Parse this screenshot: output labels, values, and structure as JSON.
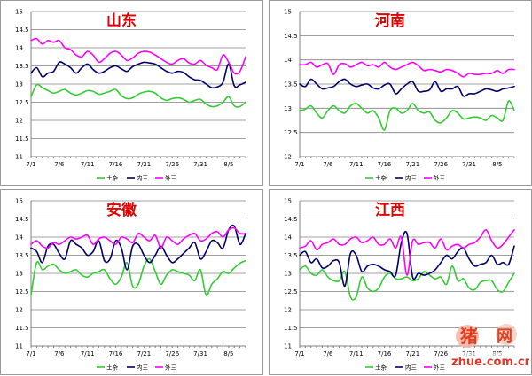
{
  "chart_data": [
    {
      "type": "line",
      "title": "山东",
      "ylim": [
        11,
        15
      ],
      "yticks": [
        "11",
        "11.5",
        "12",
        "12.5",
        "13",
        "13.5",
        "14",
        "14.5",
        "15"
      ],
      "x": [
        "7/1",
        "7/2",
        "7/3",
        "7/4",
        "7/5",
        "7/6",
        "7/7",
        "7/8",
        "7/9",
        "7/10",
        "7/11",
        "7/12",
        "7/13",
        "7/14",
        "7/15",
        "7/16",
        "7/17",
        "7/18",
        "7/19",
        "7/20",
        "7/21",
        "7/22",
        "7/23",
        "7/24",
        "7/25",
        "7/26",
        "7/27",
        "7/28",
        "7/29",
        "7/30",
        "7/31",
        "8/1",
        "8/2",
        "8/3",
        "8/4",
        "8/5",
        "8/6",
        "8/7",
        "8/8"
      ],
      "xtick_labels": [
        "7/1",
        "7/6",
        "7/11",
        "7/16",
        "7/21",
        "7/26",
        "7/31",
        "8/5"
      ],
      "legend_position": "bottom",
      "series": [
        {
          "name": "土杂",
          "color": "#33cc33",
          "values": [
            12.65,
            12.98,
            12.9,
            12.82,
            12.75,
            12.8,
            12.85,
            12.75,
            12.7,
            12.75,
            12.82,
            12.8,
            12.72,
            12.75,
            12.8,
            12.85,
            12.68,
            12.6,
            12.62,
            12.72,
            12.78,
            12.8,
            12.75,
            12.62,
            12.55,
            12.6,
            12.62,
            12.58,
            12.5,
            12.55,
            12.58,
            12.45,
            12.38,
            12.4,
            12.5,
            12.65,
            12.4,
            12.38,
            12.5
          ]
        },
        {
          "name": "内三",
          "color": "#000066",
          "values": [
            13.3,
            13.45,
            13.2,
            13.3,
            13.35,
            13.6,
            13.55,
            13.45,
            13.3,
            13.45,
            13.55,
            13.4,
            13.3,
            13.35,
            13.45,
            13.5,
            13.42,
            13.35,
            13.48,
            13.55,
            13.6,
            13.58,
            13.55,
            13.45,
            13.35,
            13.3,
            13.35,
            13.32,
            13.2,
            13.12,
            13.1,
            13.0,
            12.9,
            12.92,
            13.05,
            13.55,
            12.95,
            12.98,
            13.05
          ]
        },
        {
          "name": "外三",
          "color": "#ff00ff",
          "values": [
            14.2,
            14.25,
            14.1,
            14.2,
            14.15,
            14.2,
            14.0,
            13.95,
            13.8,
            13.75,
            13.9,
            13.8,
            13.6,
            13.7,
            13.85,
            13.9,
            13.8,
            13.65,
            13.72,
            13.85,
            13.9,
            13.88,
            13.8,
            13.7,
            13.6,
            13.55,
            13.65,
            13.7,
            13.58,
            13.55,
            13.65,
            13.52,
            13.45,
            13.4,
            13.8,
            13.6,
            13.3,
            13.35,
            13.75
          ]
        }
      ]
    },
    {
      "type": "line",
      "title": "河南",
      "ylim": [
        12,
        15
      ],
      "yticks": [
        "12",
        "12.5",
        "13",
        "13.5",
        "14",
        "14.5",
        "15"
      ],
      "x": [
        "7/1",
        "7/2",
        "7/3",
        "7/4",
        "7/5",
        "7/6",
        "7/7",
        "7/8",
        "7/9",
        "7/10",
        "7/11",
        "7/12",
        "7/13",
        "7/14",
        "7/15",
        "7/16",
        "7/17",
        "7/18",
        "7/19",
        "7/20",
        "7/21",
        "7/22",
        "7/23",
        "7/24",
        "7/25",
        "7/26",
        "7/27",
        "7/28",
        "7/29",
        "7/30",
        "7/31",
        "8/1",
        "8/2",
        "8/3",
        "8/4",
        "8/5",
        "8/6",
        "8/7",
        "8/8"
      ],
      "xtick_labels": [
        "7/1",
        "7/6",
        "7/11",
        "7/16",
        "7/21",
        "7/26",
        "7/31",
        "8/5"
      ],
      "legend_position": "bottom",
      "series": [
        {
          "name": "土杂",
          "color": "#33cc33",
          "values": [
            12.95,
            12.98,
            13.05,
            12.9,
            12.8,
            12.95,
            13.05,
            12.95,
            12.9,
            13.05,
            13.1,
            13.0,
            12.9,
            12.95,
            12.8,
            12.55,
            12.95,
            13.0,
            12.9,
            12.95,
            13.1,
            12.95,
            12.9,
            12.92,
            12.75,
            12.7,
            12.8,
            12.95,
            12.9,
            12.78,
            12.8,
            12.82,
            12.8,
            12.75,
            12.85,
            12.8,
            12.75,
            13.15,
            12.95
          ]
        },
        {
          "name": "内三",
          "color": "#000066",
          "values": [
            13.5,
            13.45,
            13.6,
            13.5,
            13.4,
            13.42,
            13.45,
            13.55,
            13.6,
            13.5,
            13.45,
            13.48,
            13.5,
            13.42,
            13.4,
            13.48,
            13.5,
            13.3,
            13.4,
            13.5,
            13.55,
            13.35,
            13.35,
            13.38,
            13.55,
            13.35,
            13.4,
            13.4,
            13.45,
            13.25,
            13.3,
            13.3,
            13.35,
            13.4,
            13.38,
            13.35,
            13.4,
            13.42,
            13.45
          ]
        },
        {
          "name": "外三",
          "color": "#ff00ff",
          "values": [
            13.9,
            13.9,
            13.95,
            13.85,
            13.9,
            13.92,
            13.7,
            13.9,
            13.92,
            13.85,
            13.9,
            13.95,
            13.88,
            13.9,
            13.85,
            13.95,
            13.85,
            13.8,
            13.85,
            13.9,
            13.95,
            13.88,
            13.78,
            13.8,
            13.78,
            13.75,
            13.8,
            13.78,
            13.72,
            13.65,
            13.72,
            13.7,
            13.7,
            13.72,
            13.72,
            13.78,
            13.72,
            13.8,
            13.8
          ]
        }
      ]
    },
    {
      "type": "line",
      "title": "安徽",
      "ylim": [
        11,
        15
      ],
      "yticks": [
        "11",
        "11.5",
        "12",
        "12.5",
        "13",
        "13.5",
        "14",
        "14.5",
        "15"
      ],
      "x": [
        "7/1",
        "7/2",
        "7/3",
        "7/4",
        "7/5",
        "7/6",
        "7/7",
        "7/8",
        "7/9",
        "7/10",
        "7/11",
        "7/12",
        "7/13",
        "7/14",
        "7/15",
        "7/16",
        "7/17",
        "7/18",
        "7/19",
        "7/20",
        "7/21",
        "7/22",
        "7/23",
        "7/24",
        "7/25",
        "7/26",
        "7/27",
        "7/28",
        "7/29",
        "7/30",
        "7/31",
        "8/1",
        "8/2",
        "8/3",
        "8/4",
        "8/5",
        "8/6",
        "8/7",
        "8/8"
      ],
      "xtick_labels": [
        "7/1",
        "7/6",
        "7/11",
        "7/16",
        "7/21",
        "7/26",
        "7/31",
        "8/5"
      ],
      "legend_position": "bottom",
      "series": [
        {
          "name": "土杂",
          "color": "#33cc33",
          "values": [
            12.4,
            13.3,
            13.1,
            13.2,
            13.25,
            13.1,
            13.0,
            13.05,
            13.1,
            12.95,
            12.9,
            13.0,
            13.05,
            13.1,
            12.85,
            12.7,
            12.9,
            13.3,
            12.65,
            12.7,
            13.2,
            13.4,
            13.05,
            12.7,
            12.95,
            13.1,
            13.05,
            13.0,
            12.95,
            12.8,
            13.1,
            12.4,
            12.7,
            12.85,
            13.05,
            13.0,
            13.15,
            13.28,
            13.35
          ]
        },
        {
          "name": "内三",
          "color": "#000066",
          "values": [
            13.7,
            13.6,
            13.3,
            13.75,
            13.8,
            13.55,
            13.4,
            13.9,
            13.8,
            13.7,
            13.5,
            13.6,
            13.9,
            13.35,
            13.4,
            13.9,
            13.7,
            13.1,
            13.75,
            13.8,
            13.5,
            13.3,
            13.5,
            13.75,
            13.5,
            13.3,
            13.4,
            13.55,
            13.7,
            13.85,
            13.4,
            13.6,
            13.9,
            13.85,
            13.7,
            14.2,
            14.3,
            13.8,
            14.1
          ]
        },
        {
          "name": "外三",
          "color": "#ff00ff",
          "values": [
            13.8,
            13.9,
            13.75,
            13.7,
            13.85,
            13.8,
            13.9,
            14.0,
            13.95,
            14.0,
            14.05,
            13.8,
            13.95,
            14.0,
            13.9,
            13.8,
            14.0,
            13.95,
            13.85,
            14.1,
            14.0,
            13.9,
            14.05,
            13.7,
            14.0,
            13.9,
            13.8,
            13.95,
            14.05,
            14.1,
            13.9,
            13.95,
            14.1,
            14.15,
            14.0,
            14.2,
            14.25,
            14.1,
            14.1
          ]
        }
      ]
    },
    {
      "type": "line",
      "title": "江西",
      "ylim": [
        11,
        15
      ],
      "yticks": [
        "11",
        "11.5",
        "12",
        "12.5",
        "13",
        "13.5",
        "14",
        "14.5",
        "15"
      ],
      "x": [
        "7/1",
        "7/2",
        "7/3",
        "7/4",
        "7/5",
        "7/6",
        "7/7",
        "7/8",
        "7/9",
        "7/10",
        "7/11",
        "7/12",
        "7/13",
        "7/14",
        "7/15",
        "7/16",
        "7/17",
        "7/18",
        "7/19",
        "7/20",
        "7/21",
        "7/22",
        "7/23",
        "7/24",
        "7/25",
        "7/26",
        "7/27",
        "7/28",
        "7/29",
        "7/30",
        "7/31",
        "8/1",
        "8/2",
        "8/3",
        "8/4",
        "8/5",
        "8/6",
        "8/7",
        "8/8"
      ],
      "xtick_labels": [
        "7/1",
        "7/6",
        "7/11",
        "7/16",
        "7/21",
        "7/26",
        "7/31",
        "8/5"
      ],
      "legend_position": "bottom",
      "series": [
        {
          "name": "土杂",
          "color": "#33cc33",
          "values": [
            13.1,
            13.2,
            13.0,
            12.95,
            13.1,
            12.9,
            12.8,
            12.8,
            13.05,
            12.35,
            12.35,
            12.9,
            12.6,
            12.5,
            12.6,
            12.9,
            13.0,
            12.85,
            12.85,
            12.9,
            12.8,
            12.85,
            13.05,
            12.95,
            12.85,
            12.9,
            12.7,
            13.2,
            12.8,
            12.85,
            12.6,
            12.55,
            12.75,
            12.8,
            12.8,
            12.55,
            12.5,
            12.75,
            13.0
          ]
        },
        {
          "name": "内三",
          "color": "#000066",
          "values": [
            13.5,
            13.6,
            13.3,
            13.4,
            13.15,
            13.2,
            13.35,
            13.3,
            12.65,
            13.55,
            13.5,
            13.05,
            13.2,
            13.25,
            13.2,
            13.1,
            13.05,
            12.95,
            13.85,
            14.1,
            12.9,
            13.0,
            12.95,
            13.0,
            13.1,
            13.3,
            13.5,
            13.4,
            13.6,
            13.7,
            13.4,
            13.2,
            13.25,
            13.3,
            13.5,
            13.25,
            13.3,
            13.25,
            13.75
          ]
        },
        {
          "name": "外三",
          "color": "#ff00ff",
          "values": [
            13.7,
            13.75,
            13.9,
            13.65,
            13.8,
            13.85,
            13.95,
            13.8,
            13.8,
            13.95,
            14.0,
            13.85,
            13.9,
            14.0,
            13.8,
            13.8,
            13.95,
            13.7,
            14.0,
            12.95,
            13.9,
            13.8,
            13.85,
            13.85,
            13.7,
            13.95,
            13.65,
            13.75,
            13.8,
            13.7,
            13.8,
            13.85,
            14.0,
            14.2,
            13.9,
            13.7,
            13.8,
            14.0,
            14.2
          ]
        }
      ]
    }
  ],
  "watermark": {
    "line1": "猪",
    "line1b": "网",
    "line2": "zhue.com.cn"
  }
}
